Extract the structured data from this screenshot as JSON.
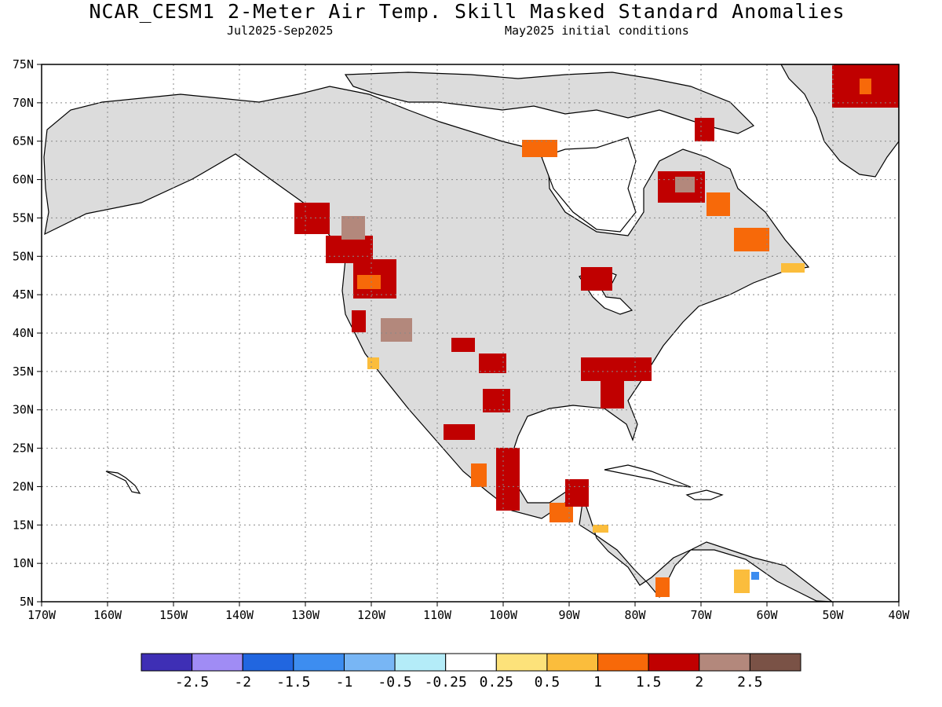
{
  "header": {
    "title": "NCAR_CESM1 2-Meter Air Temp. Skill Masked Standard Anomalies",
    "period": "Jul2025-Sep2025",
    "init": "May2025 initial conditions"
  },
  "map": {
    "lon_range": [
      -170,
      -40
    ],
    "lat_range": [
      5,
      75
    ],
    "lon_labels": [
      "170W",
      "160W",
      "150W",
      "140W",
      "130W",
      "120W",
      "110W",
      "100W",
      "90W",
      "80W",
      "70W",
      "60W",
      "50W",
      "40W"
    ],
    "lat_labels": [
      "75N",
      "70N",
      "65N",
      "60N",
      "55N",
      "50N",
      "45N",
      "40N",
      "35N",
      "30N",
      "25N",
      "20N",
      "15N",
      "10N",
      "5N"
    ],
    "land_color": "#dcdcdc",
    "masked_color": "#ffffff"
  },
  "colorbar": {
    "colors": [
      "#3e2fb5",
      "#a08cf5",
      "#2166e0",
      "#3d8df0",
      "#78b6f5",
      "#b4ecf8",
      "#ffffff",
      "#fde27a",
      "#fbbd3c",
      "#f76909",
      "#c00000",
      "#b3887c",
      "#7a5246"
    ],
    "labels": [
      "-2.5",
      "-2",
      "-1.5",
      "-1",
      "-0.5",
      "-0.25",
      "0.25",
      "0.5",
      "1",
      "1.5",
      "2",
      "2.5"
    ]
  }
}
